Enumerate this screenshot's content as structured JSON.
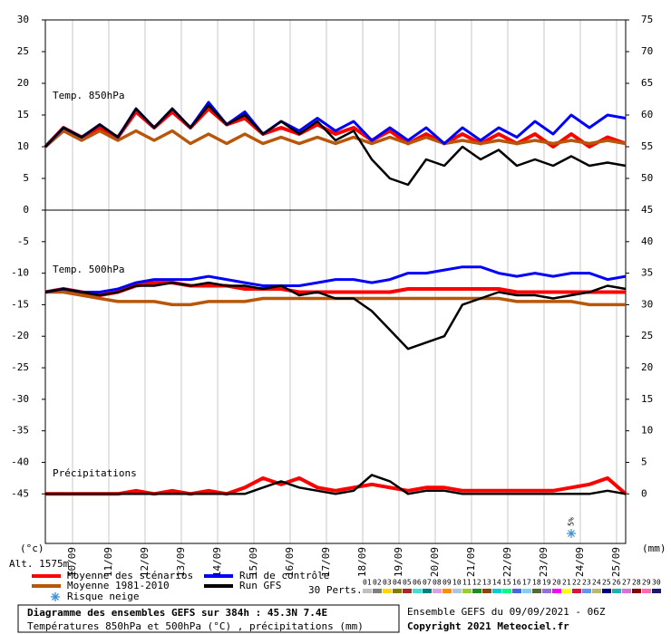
{
  "chart_data": [
    {
      "type": "line",
      "label": "Temp. 850hPa",
      "x": [
        0,
        12,
        24,
        36,
        48,
        60,
        72,
        84,
        96,
        108,
        120,
        132,
        144,
        156,
        168,
        180,
        192,
        204,
        216,
        228,
        240,
        252,
        264,
        276,
        288,
        300,
        312,
        324,
        336,
        348,
        360,
        372,
        384
      ],
      "xlim": [
        0,
        384
      ],
      "xticks": [
        {
          "value": 18,
          "label": "10/09"
        },
        {
          "value": 42,
          "label": "11/09"
        },
        {
          "value": 66,
          "label": "12/09"
        },
        {
          "value": 90,
          "label": "13/09"
        },
        {
          "value": 114,
          "label": "14/09"
        },
        {
          "value": 138,
          "label": "15/09"
        },
        {
          "value": 162,
          "label": "16/09"
        },
        {
          "value": 186,
          "label": "17/09"
        },
        {
          "value": 210,
          "label": "18/09"
        },
        {
          "value": 234,
          "label": "19/09"
        },
        {
          "value": 258,
          "label": "20/09"
        },
        {
          "value": 282,
          "label": "21/09"
        },
        {
          "value": 306,
          "label": "22/09"
        },
        {
          "value": 330,
          "label": "23/09"
        },
        {
          "value": 354,
          "label": "24/09"
        },
        {
          "value": 378,
          "label": "25/09"
        }
      ],
      "ylim": [
        0,
        30
      ],
      "yticks": [
        5,
        10,
        15,
        20,
        25,
        30
      ],
      "y2lim": [
        45,
        75
      ],
      "y2ticks": [
        50,
        55,
        60,
        65,
        70,
        75
      ],
      "series": [
        {
          "name": "Moyenne des scénarios",
          "color": "#ff0000",
          "values": [
            10,
            13,
            11.5,
            13,
            11.5,
            15.5,
            13,
            15.5,
            13,
            16,
            13.5,
            14.5,
            12,
            13,
            12,
            13.5,
            12,
            13,
            11,
            12.5,
            10.5,
            12,
            10.5,
            12,
            10.5,
            12,
            10.5,
            12,
            10,
            12,
            10,
            11.5,
            10.5
          ]
        },
        {
          "name": "Moyenne 1981-2010",
          "color": "#b8560a",
          "values": [
            10,
            12.5,
            11,
            12.5,
            11,
            12.5,
            11,
            12.5,
            10.5,
            12,
            10.5,
            12,
            10.5,
            11.5,
            10.5,
            11.5,
            10.5,
            11.5,
            10.5,
            11.5,
            10.5,
            11.5,
            10.5,
            11,
            10.5,
            11,
            10.5,
            11,
            10.5,
            11,
            10.5,
            11,
            10.5
          ]
        },
        {
          "name": "Run de contrôle",
          "color": "#0000ff",
          "values": [
            10,
            13,
            11.5,
            13.5,
            11.5,
            16,
            13,
            16,
            13,
            17,
            13.5,
            15.5,
            12,
            14,
            12.5,
            14.5,
            12.5,
            14,
            11,
            13,
            11,
            13,
            10.5,
            13,
            11,
            13,
            11.5,
            14,
            12,
            15,
            13,
            15,
            14.5
          ]
        },
        {
          "name": "Run GFS",
          "color": "#000000",
          "values": [
            10,
            13,
            11.5,
            13.5,
            11.5,
            16,
            13,
            16,
            13,
            16.5,
            13.5,
            15,
            12,
            14,
            12,
            14,
            11,
            12.5,
            8,
            5,
            4,
            8,
            7,
            10,
            8,
            9.5,
            7,
            8,
            7,
            8.5,
            7,
            7.5,
            7
          ]
        }
      ]
    },
    {
      "type": "line",
      "label": "Temp. 500hPa",
      "label2": "Précipitations",
      "x": [
        0,
        12,
        24,
        36,
        48,
        60,
        72,
        84,
        96,
        108,
        120,
        132,
        144,
        156,
        168,
        180,
        192,
        204,
        216,
        228,
        240,
        252,
        264,
        276,
        288,
        300,
        312,
        324,
        336,
        348,
        360,
        372,
        384
      ],
      "xlim": [
        0,
        384
      ],
      "ylim": [
        -52.86,
        0
      ],
      "yticks": [
        -45,
        -40,
        -35,
        -30,
        -25,
        -20,
        -15,
        -10,
        -5,
        0
      ],
      "y2lim": [
        -7.86,
        45
      ],
      "y2ticks": [
        0,
        5,
        10,
        15,
        20,
        25,
        30,
        35,
        40,
        45
      ],
      "y_unit": "(°c)",
      "y2_unit": "(mm)",
      "altitude": "Alt. 1575m",
      "annotations": [
        {
          "text": "5%",
          "x": 348
        }
      ],
      "series": [
        {
          "name": "Moyenne des scénarios",
          "color": "#ff0000",
          "values": [
            -13,
            -12.5,
            -13,
            -13.5,
            -13,
            -12,
            -11.5,
            -11.5,
            -12,
            -12,
            -12,
            -12.5,
            -12.5,
            -12.5,
            -13,
            -13,
            -13,
            -13,
            -13,
            -13,
            -12.5,
            -12.5,
            -12.5,
            -12.5,
            -12.5,
            -12.5,
            -13,
            -13,
            -13,
            -13,
            -13,
            -13,
            -13
          ]
        },
        {
          "name": "Moyenne 1981-2010",
          "color": "#b8560a",
          "values": [
            -13,
            -13,
            -13.5,
            -14,
            -14.5,
            -14.5,
            -14.5,
            -15,
            -15,
            -14.5,
            -14.5,
            -14.5,
            -14,
            -14,
            -14,
            -14,
            -14,
            -14,
            -14,
            -14,
            -14,
            -14,
            -14,
            -14,
            -14,
            -14,
            -14.5,
            -14.5,
            -14.5,
            -14.5,
            -15,
            -15,
            -15
          ]
        },
        {
          "name": "Run de contrôle",
          "color": "#0000ff",
          "values": [
            -13,
            -12.5,
            -13,
            -13,
            -12.5,
            -11.5,
            -11,
            -11,
            -11,
            -10.5,
            -11,
            -11.5,
            -12,
            -12,
            -12,
            -11.5,
            -11,
            -11,
            -11.5,
            -11,
            -10,
            -10,
            -9.5,
            -9,
            -9,
            -10,
            -10.5,
            -10,
            -10.5,
            -10,
            -10,
            -11,
            -10.5
          ]
        },
        {
          "name": "Run GFS",
          "color": "#000000",
          "values": [
            -13,
            -12.5,
            -13,
            -13.5,
            -13,
            -12,
            -12,
            -11.5,
            -12,
            -11.5,
            -12,
            -12,
            -12.5,
            -12,
            -13.5,
            -13,
            -14,
            -14,
            -16,
            -19,
            -22,
            -21,
            -20,
            -15,
            -14,
            -13,
            -13.5,
            -13.5,
            -14,
            -13.5,
            -13,
            -12,
            -12.5
          ]
        },
        {
          "name": "Moyenne des scénarios",
          "color": "#ff0000",
          "axis": "y2",
          "values": [
            0,
            0,
            0,
            0,
            0,
            0.5,
            0,
            0.5,
            0,
            0.5,
            0,
            1,
            2.5,
            1.5,
            2.5,
            1,
            0.5,
            1,
            1.5,
            1,
            0.5,
            1,
            1,
            0.5,
            0.5,
            0.5,
            0.5,
            0.5,
            0.5,
            1,
            1.5,
            2.5,
            0
          ]
        },
        {
          "name": "Run GFS",
          "color": "#000000",
          "axis": "y2",
          "values": [
            0,
            0,
            0,
            0,
            0,
            0,
            0,
            0,
            0,
            0,
            0,
            0,
            1,
            2,
            1,
            0.5,
            0,
            0.5,
            3,
            2,
            0,
            0.5,
            0.5,
            0,
            0,
            0,
            0,
            0,
            0,
            0,
            0,
            0.5,
            0
          ]
        }
      ]
    }
  ],
  "legend": {
    "snow": "Risque neige",
    "perts_label": "30 Perts.",
    "perts": [
      {
        "name": "01",
        "color": "#c0c0c0"
      },
      {
        "name": "02",
        "color": "#808080"
      },
      {
        "name": "03",
        "color": "#ffd700"
      },
      {
        "name": "04",
        "color": "#808000"
      },
      {
        "name": "05",
        "color": "#a52a2a"
      },
      {
        "name": "06",
        "color": "#40e0d0"
      },
      {
        "name": "07",
        "color": "#008080"
      },
      {
        "name": "08",
        "color": "#dda0dd"
      },
      {
        "name": "09",
        "color": "#ff8c00"
      },
      {
        "name": "10",
        "color": "#b0c4de"
      },
      {
        "name": "11",
        "color": "#9acd32"
      },
      {
        "name": "12",
        "color": "#228b22"
      },
      {
        "name": "13",
        "color": "#8b4513"
      },
      {
        "name": "14",
        "color": "#00ced1"
      },
      {
        "name": "15",
        "color": "#00ff7f"
      },
      {
        "name": "16",
        "color": "#4169e1"
      },
      {
        "name": "17",
        "color": "#87ceeb"
      },
      {
        "name": "18",
        "color": "#556b2f"
      },
      {
        "name": "19",
        "color": "#9370db"
      },
      {
        "name": "20",
        "color": "#ff00ff"
      },
      {
        "name": "21",
        "color": "#ffff00"
      },
      {
        "name": "22",
        "color": "#dc143c"
      },
      {
        "name": "23",
        "color": "#6495ed"
      },
      {
        "name": "24",
        "color": "#bdb76b"
      },
      {
        "name": "25",
        "color": "#000080"
      },
      {
        "name": "26",
        "color": "#20b2aa"
      },
      {
        "name": "27",
        "color": "#da70d6"
      },
      {
        "name": "28",
        "color": "#8b0000"
      },
      {
        "name": "29",
        "color": "#ff69b4"
      },
      {
        "name": "30",
        "color": "#191970"
      }
    ]
  },
  "footer": {
    "title": "Diagramme des ensembles GEFS sur 384h : 45.3N 7.4E",
    "subtitle": "Températures 850hPa et 500hPa (°C) , précipitations (mm)",
    "run": "Ensemble GEFS du 09/09/2021 - 06Z",
    "copyright": "Copyright 2021 Meteociel.fr"
  }
}
